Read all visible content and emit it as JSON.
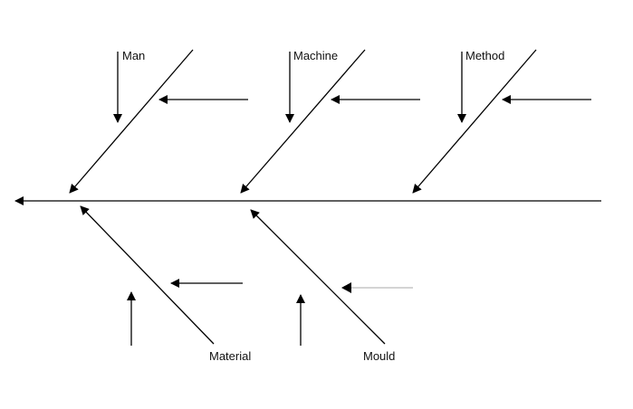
{
  "diagram": {
    "type": "fishbone",
    "categories": {
      "man": "Man",
      "machine": "Machine",
      "method": "Method",
      "material": "Material",
      "mould": "Mould"
    },
    "colors": {
      "line": "#000000",
      "faint_line": "#aaaaaa"
    }
  }
}
